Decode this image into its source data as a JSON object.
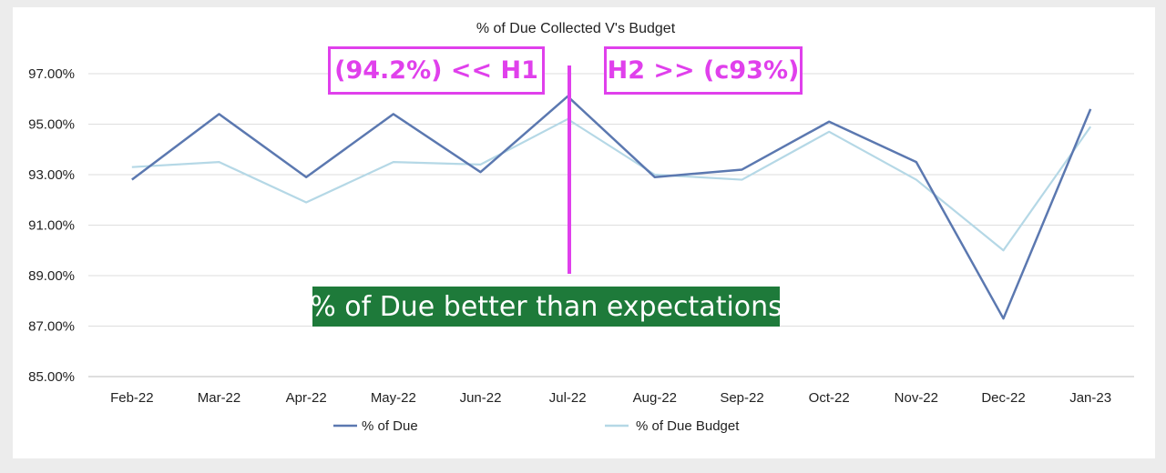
{
  "chart_data": {
    "type": "line",
    "title": "% of Due Collected V's Budget",
    "categories": [
      "Feb-22",
      "Mar-22",
      "Apr-22",
      "May-22",
      "Jun-22",
      "Jul-22",
      "Aug-22",
      "Sep-22",
      "Oct-22",
      "Nov-22",
      "Dec-22",
      "Jan-23"
    ],
    "ylim": [
      85,
      97
    ],
    "yticks": [
      {
        "value": 85,
        "label": "85.00%"
      },
      {
        "value": 87,
        "label": "87.00%"
      },
      {
        "value": 89,
        "label": "89.00%"
      },
      {
        "value": 91,
        "label": "91.00%"
      },
      {
        "value": 93,
        "label": "93.00%"
      },
      {
        "value": 95,
        "label": "95.00%"
      },
      {
        "value": 97,
        "label": "97.00%"
      }
    ],
    "grid": true,
    "legend_position": "bottom",
    "series": [
      {
        "name": "% of Due",
        "color": "#5b78b0",
        "values": [
          92.8,
          95.4,
          92.9,
          95.4,
          93.1,
          96.1,
          92.9,
          93.2,
          95.1,
          93.5,
          87.3,
          95.6
        ]
      },
      {
        "name": "% of Due Budget",
        "color": "#b5d8e6",
        "values": [
          93.3,
          93.5,
          91.9,
          93.5,
          93.4,
          95.2,
          93.0,
          92.8,
          94.7,
          92.8,
          90.0,
          94.9
        ]
      }
    ]
  },
  "annotations": {
    "h1_label": "(94.2%) << H1",
    "h2_label": "H2 >> (c93%)",
    "banner": "% of Due better than expectations",
    "accent_color": "#e040ec",
    "banner_color": "#1e7a3a"
  }
}
